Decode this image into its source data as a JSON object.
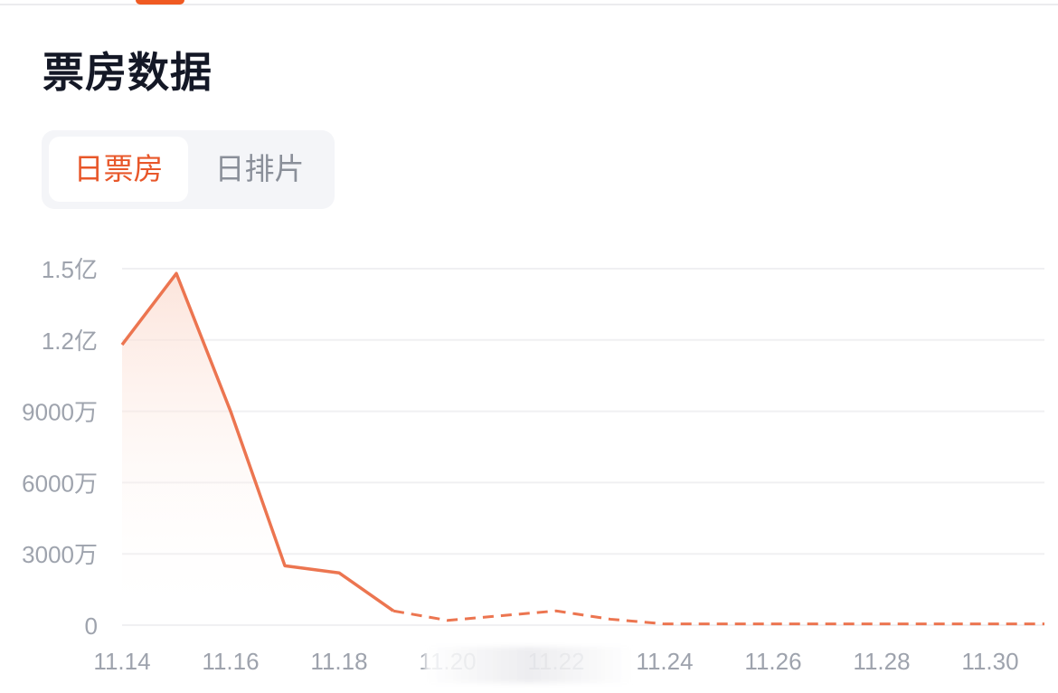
{
  "header": {
    "title": "票房数据"
  },
  "tabs": [
    {
      "label": "日票房",
      "active": true
    },
    {
      "label": "日排片",
      "active": false
    }
  ],
  "colors": {
    "accent": "#ec7550",
    "active_tab": "#e8572a",
    "grid": "#f0f0f2",
    "tick": "#9ea3ad"
  },
  "chart_data": {
    "type": "line",
    "x": [
      "11.14",
      "11.15",
      "11.16",
      "11.17",
      "11.18",
      "11.19",
      "11.20",
      "11.21",
      "11.22",
      "11.23",
      "11.24",
      "11.25",
      "11.26",
      "11.27",
      "11.28",
      "11.29",
      "11.30",
      "11.31"
    ],
    "series": [
      {
        "values": [
          11800,
          14800,
          9000,
          2500,
          2200,
          600,
          200,
          400,
          600,
          250,
          50,
          50,
          50,
          50,
          50,
          50,
          50,
          50
        ],
        "unit": "万",
        "solid_until": "11.19",
        "dashed_after": "11.19"
      }
    ],
    "yticks": [
      {
        "value": 0,
        "label": "0"
      },
      {
        "value": 3000,
        "label": "3000万"
      },
      {
        "value": 6000,
        "label": "6000万"
      },
      {
        "value": 9000,
        "label": "9000万"
      },
      {
        "value": 12000,
        "label": "1.2亿"
      },
      {
        "value": 15000,
        "label": "1.5亿"
      }
    ],
    "xticks": [
      "11.14",
      "11.16",
      "11.18",
      "11.20",
      "11.22",
      "11.24",
      "11.26",
      "11.28",
      "11.30"
    ],
    "ylim": [
      0,
      15000
    ],
    "grid": true,
    "area_fill": true,
    "legend": "none"
  }
}
